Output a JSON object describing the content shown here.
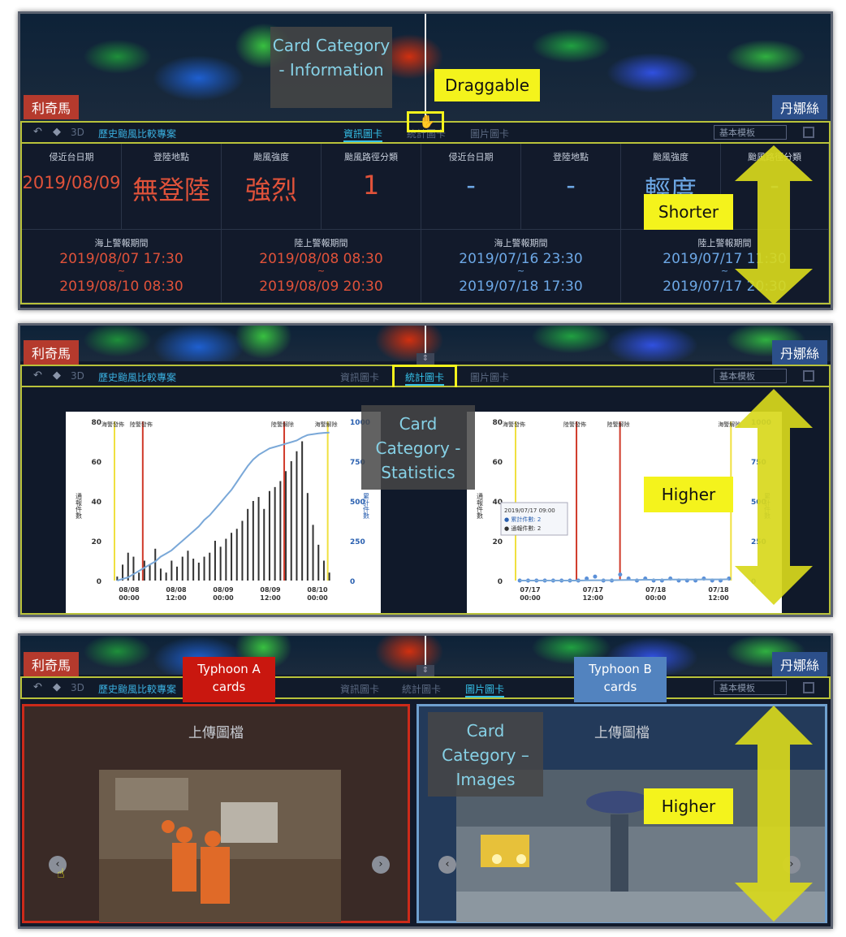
{
  "typhoons": {
    "a": "利奇馬",
    "b": "丹娜絲"
  },
  "toolbar": {
    "mode_3d": "3D",
    "project_title": "歷史颱風比較專案",
    "tab_info": "資訊圖卡",
    "tab_stats": "統計圖卡",
    "tab_images": "圖片圖卡",
    "template": "基本模板"
  },
  "info": {
    "labels": [
      "侵近台日期",
      "登陸地點",
      "颱風強度",
      "颱風路徑分類"
    ],
    "a": {
      "date": "2019/08/09",
      "landing": "無登陸",
      "strength": "強烈",
      "path": "1"
    },
    "b": {
      "date": "-",
      "landing": "-",
      "strength": "輕度",
      "path": "-"
    },
    "period_labels": [
      "海上警報期間",
      "陸上警報期間"
    ],
    "a_periods": [
      {
        "from": "2019/08/07 17:30",
        "sep": "~",
        "to": "2019/08/10 08:30"
      },
      {
        "from": "2019/08/08 08:30",
        "sep": "~",
        "to": "2019/08/09 20:30"
      }
    ],
    "b_periods": [
      {
        "from": "2019/07/16 23:30",
        "sep": "~",
        "to": "2019/07/18 17:30"
      },
      {
        "from": "2019/07/17 11:30",
        "sep": "~",
        "to": "2019/07/17 20:30"
      }
    ]
  },
  "annotations": {
    "cat_info": "Card Category - Information",
    "draggable": "Draggable",
    "shorter": "Shorter",
    "cat_stats": "Card Category - Statistics",
    "higher1": "Higher",
    "cat_images": "Card Category – Images",
    "higher2": "Higher",
    "team_a": "Typhoon A cards",
    "team_b": "Typhoon B cards"
  },
  "image_cards": {
    "title_a": "上傳圖檔",
    "title_b": "上傳圖檔",
    "prev": "‹",
    "next": "›"
  },
  "chart_data": [
    {
      "type": "bar",
      "title": "",
      "ylabel": "通報件數",
      "y2label": "累計件數",
      "ylim": [
        0,
        80
      ],
      "y2lim": [
        0,
        1000
      ],
      "y_ticks": [
        "0",
        "20",
        "40",
        "60",
        "80"
      ],
      "y2_ticks": [
        "0",
        "250",
        "500",
        "750",
        "1000"
      ],
      "x_ticks": [
        "08/08 00:00",
        "08/08 12:00",
        "08/09 00:00",
        "08/09 12:00",
        "08/10 00:00"
      ],
      "markers": [
        {
          "label": "海警發佈",
          "x": 0,
          "color": "#f0e040"
        },
        {
          "label": "陸警發佈",
          "x": 0.13,
          "color": "#d03a2a"
        },
        {
          "label": "陸警解除",
          "x": 0.78,
          "color": "#d03a2a"
        },
        {
          "label": "海警解除",
          "x": 0.98,
          "color": "#f0e040"
        }
      ],
      "values": [
        2,
        8,
        14,
        12,
        4,
        10,
        8,
        16,
        6,
        4,
        10,
        7,
        12,
        15,
        11,
        9,
        12,
        14,
        20,
        17,
        21,
        24,
        26,
        30,
        36,
        40,
        42,
        36,
        45,
        47,
        50,
        55,
        60,
        65,
        70,
        44,
        28,
        18,
        10,
        4
      ],
      "cumulative": [
        0,
        10,
        20,
        40,
        60,
        80,
        100,
        120,
        150,
        170,
        190,
        220,
        250,
        280,
        310,
        340,
        380,
        410,
        450,
        490,
        530,
        570,
        620,
        670,
        720,
        760,
        790,
        810,
        830,
        840,
        850,
        860,
        870,
        880,
        900,
        915,
        920,
        925,
        928,
        930
      ]
    },
    {
      "type": "line",
      "title": "",
      "ylabel": "通報件數",
      "y2label": "累計件數",
      "ylim": [
        0,
        80
      ],
      "y2lim": [
        0,
        1000
      ],
      "y_ticks": [
        "0",
        "20",
        "40",
        "60",
        "80"
      ],
      "y2_ticks": [
        "0",
        "250",
        "500",
        "750",
        "1000"
      ],
      "x_ticks": [
        "07/17 00:00",
        "07/17 12:00",
        "07/18 00:00",
        "07/18 12:00"
      ],
      "markers": [
        {
          "label": "海警發佈",
          "x": 0,
          "color": "#f0e040"
        },
        {
          "label": "陸警發佈",
          "x": 0.28,
          "color": "#d03a2a"
        },
        {
          "label": "陸警解除",
          "x": 0.48,
          "color": "#d03a2a"
        },
        {
          "label": "海警解除",
          "x": 0.99,
          "color": "#f0e040"
        }
      ],
      "tooltip": {
        "time": "2019/07/17 09:00",
        "cum": "累計件數: 2",
        "cnt": "通報件數: 2"
      },
      "values": [
        0,
        0,
        0,
        0,
        0,
        0,
        0,
        0,
        1,
        2,
        0,
        0,
        3,
        1,
        0,
        1,
        0,
        0,
        1,
        0,
        0,
        0,
        1,
        0,
        0,
        1
      ],
      "cumulative": [
        0,
        0,
        0,
        0,
        0,
        0,
        0,
        0,
        1,
        2,
        2,
        2,
        3,
        4,
        4,
        5,
        5,
        5,
        6,
        6,
        6,
        6,
        7,
        7,
        7,
        8
      ]
    }
  ],
  "colors": {
    "accent": "#b9c23a",
    "highlight": "#f4f31c",
    "red_text": "#e0523a",
    "blue_text": "#6da8e6"
  }
}
